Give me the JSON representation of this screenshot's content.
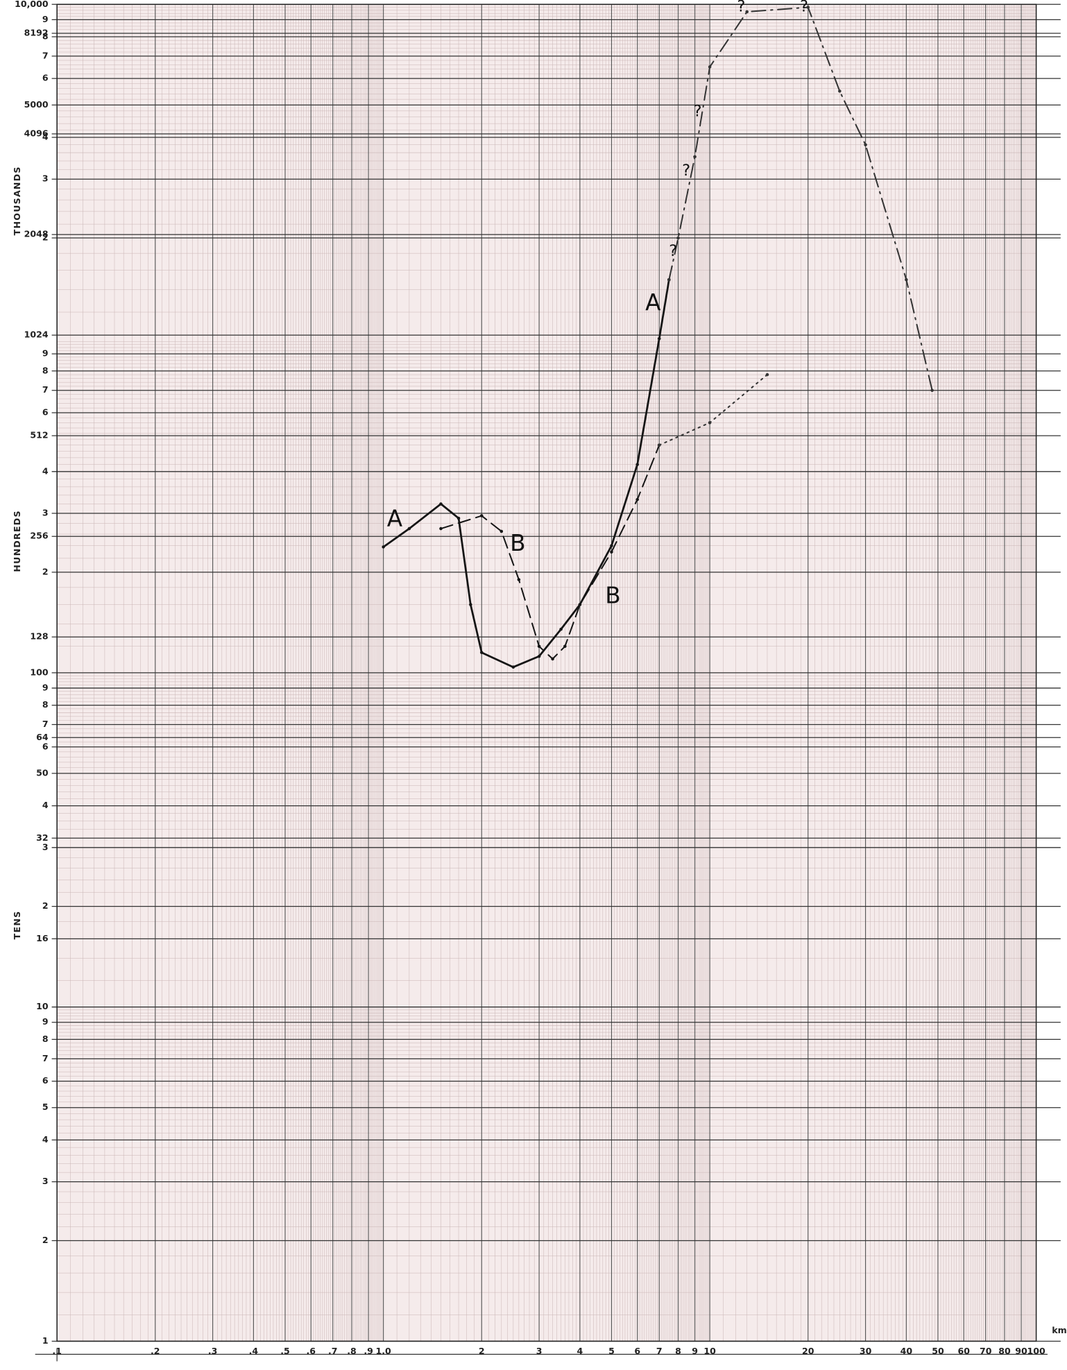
{
  "chart_data": {
    "type": "line",
    "xlabel": "km",
    "y_section_labels": [
      "THOUSANDS",
      "HUNDREDS",
      "TENS"
    ],
    "xscale": "log",
    "yscale": "log",
    "grid": true,
    "xlim": [
      0.1,
      100
    ],
    "ylim": [
      1,
      10000
    ],
    "xticks": [
      {
        "value": 0.1,
        "label": ".1"
      },
      {
        "value": 0.2,
        "label": ".2"
      },
      {
        "value": 0.3,
        "label": ".3"
      },
      {
        "value": 0.4,
        "label": ".4"
      },
      {
        "value": 0.5,
        "label": ".5"
      },
      {
        "value": 0.6,
        "label": ".6"
      },
      {
        "value": 0.7,
        "label": ".7"
      },
      {
        "value": 0.8,
        "label": ".8"
      },
      {
        "value": 0.9,
        "label": ".9"
      },
      {
        "value": 1,
        "label": "1.0"
      },
      2,
      3,
      4,
      5,
      6,
      7,
      8,
      9,
      10,
      20,
      30,
      40,
      50,
      60,
      70,
      80,
      90,
      100
    ],
    "yticks": [
      1,
      2,
      3,
      4,
      5,
      6,
      7,
      8,
      9,
      10,
      16,
      {
        "value": 20,
        "label": "2"
      },
      {
        "value": 30,
        "label": "3"
      },
      32,
      {
        "value": 40,
        "label": "4"
      },
      50,
      {
        "value": 60,
        "label": "6"
      },
      64,
      {
        "value": 70,
        "label": "7"
      },
      {
        "value": 80,
        "label": "8"
      },
      {
        "value": 90,
        "label": "9"
      },
      100,
      128,
      {
        "value": 200,
        "label": "2"
      },
      256,
      {
        "value": 300,
        "label": "3"
      },
      {
        "value": 400,
        "label": "4"
      },
      512,
      {
        "value": 600,
        "label": "6"
      },
      {
        "value": 700,
        "label": "7"
      },
      {
        "value": 800,
        "label": "8"
      },
      {
        "value": 900,
        "label": "9"
      },
      1024,
      {
        "value": 2000,
        "label": "2"
      },
      2048,
      {
        "value": 3000,
        "label": "3"
      },
      {
        "value": 4000,
        "label": "4"
      },
      4096,
      5000,
      {
        "value": 6000,
        "label": "6"
      },
      {
        "value": 7000,
        "label": "7"
      },
      {
        "value": 8000,
        "label": "8"
      },
      8192,
      {
        "value": 9000,
        "label": "9"
      },
      {
        "value": 10000,
        "label": "10,000"
      }
    ],
    "series": [
      {
        "name": "A",
        "color": "#151515",
        "style": "solid",
        "x": [
          1.0,
          1.2,
          1.5,
          1.7,
          1.85,
          2.0,
          2.5,
          3.0,
          3.5,
          4.0,
          5.0,
          6.0,
          7.0,
          7.5
        ],
        "y": [
          238,
          270,
          320,
          290,
          160,
          115,
          104,
          112,
          135,
          160,
          240,
          420,
          1000,
          1500
        ]
      },
      {
        "color": "#333333",
        "style": "dashdot",
        "x": [
          7.5,
          8,
          9,
          10,
          13,
          20,
          25,
          30,
          40,
          48
        ],
        "y": [
          1500,
          2000,
          3500,
          6500,
          9500,
          9800,
          5500,
          3800,
          1500,
          700
        ]
      },
      {
        "name": "B",
        "color": "#151515",
        "style": "dashed",
        "x": [
          1.5,
          2.0,
          2.3,
          2.6,
          3.0,
          3.3,
          3.6,
          4.0,
          5.0,
          6.0,
          7.0
        ],
        "y": [
          270,
          295,
          265,
          190,
          120,
          110,
          120,
          160,
          230,
          330,
          480
        ]
      },
      {
        "color": "#333333",
        "style": "dotted",
        "x": [
          7.0,
          10,
          15
        ],
        "y": [
          480,
          560,
          780
        ]
      }
    ],
    "annotations": [
      "?",
      "?",
      "?",
      "?",
      "?"
    ]
  }
}
